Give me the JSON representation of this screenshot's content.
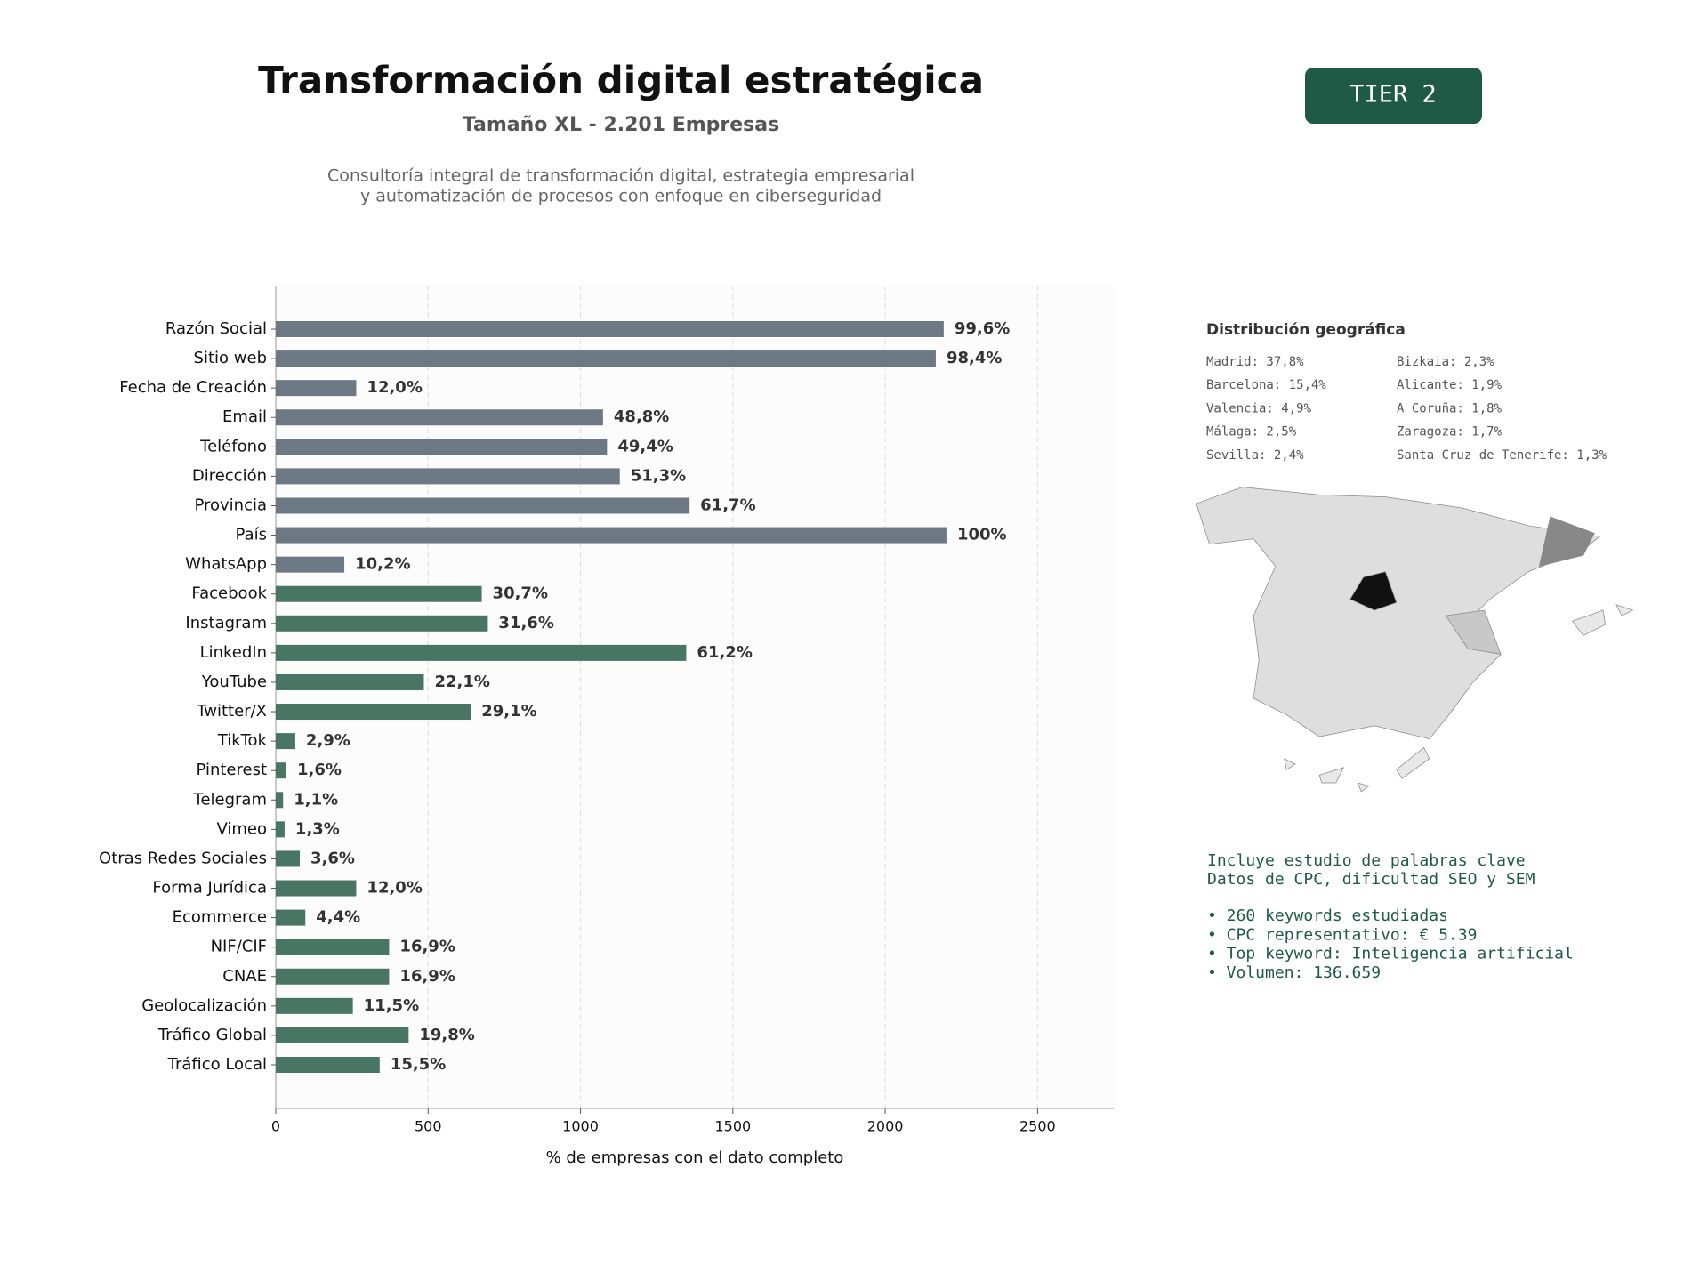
{
  "header": {
    "title": "Transformación digital estratégica",
    "subtitle": "Tamaño XL - 2.201 Empresas",
    "description": [
      "Consultoría integral de transformación digital, estrategia empresarial",
      "y automatización de procesos con enfoque en ciberseguridad"
    ],
    "badge": "TIER 2"
  },
  "chart_data": {
    "type": "barh",
    "categories": [
      "Razón Social",
      "Sitio web",
      "Fecha de Creación",
      "Email",
      "Teléfono",
      "Dirección",
      "Provincia",
      "País",
      "WhatsApp",
      "Facebook",
      "Instagram",
      "LinkedIn",
      "YouTube",
      "Twitter/X",
      "TikTok",
      "Pinterest",
      "Telegram",
      "Vimeo",
      "Otras Redes Sociales",
      "Forma Jurídica",
      "Ecommerce",
      "NIF/CIF",
      "CNAE",
      "Geolocalización",
      "Tráfico Global",
      "Tráfico Local"
    ],
    "values": [
      2192,
      2166,
      264,
      1074,
      1087,
      1129,
      1358,
      2201,
      225,
      676,
      696,
      1347,
      486,
      640,
      64,
      35,
      24,
      29,
      79,
      264,
      97,
      372,
      372,
      253,
      436,
      341
    ],
    "value_labels": [
      "99,6%",
      "98,4%",
      "12,0%",
      "48,8%",
      "49,4%",
      "51,3%",
      "61,7%",
      "100%",
      "10,2%",
      "30,7%",
      "31,6%",
      "61,2%",
      "22,1%",
      "29,1%",
      "2,9%",
      "1,6%",
      "1,1%",
      "1,3%",
      "3,6%",
      "12,0%",
      "4,4%",
      "16,9%",
      "16,9%",
      "11,5%",
      "19,8%",
      "15,5%"
    ],
    "colors": [
      "#6c7883",
      "#6c7883",
      "#6c7883",
      "#6c7883",
      "#6c7883",
      "#6c7883",
      "#6c7883",
      "#6c7883",
      "#6c7883",
      "#487564",
      "#487564",
      "#487564",
      "#487564",
      "#487564",
      "#487564",
      "#487564",
      "#487564",
      "#487564",
      "#487564",
      "#487564",
      "#487564",
      "#487564",
      "#487564",
      "#487564",
      "#487564",
      "#487564"
    ],
    "xlabel": "% de empresas con el dato completo",
    "xlim": [
      0,
      2750
    ],
    "xticks": [
      0,
      500,
      1000,
      1500,
      2000,
      2500
    ],
    "grid": true
  },
  "geo": {
    "title": "Distribución geográfica",
    "items": [
      "Madrid: 37,8%",
      "Barcelona: 15,4%",
      "Valencia: 4,9%",
      "Málaga: 2,5%",
      "Sevilla: 2,4%",
      "Bizkaia: 2,3%",
      "Alicante: 1,9%",
      "A Coruña: 1,8%",
      "Zaragoza: 1,7%",
      "Santa Cruz de Tenerife: 1,3%"
    ]
  },
  "keywords": {
    "lines": [
      "Incluye estudio de palabras clave",
      "Datos de CPC, dificultad SEO y SEM"
    ],
    "bullets": [
      "• 260 keywords estudiadas",
      "• CPC representativo: € 5.39",
      "• Top keyword: Inteligencia artificial",
      "• Volumen: 136.659"
    ]
  }
}
